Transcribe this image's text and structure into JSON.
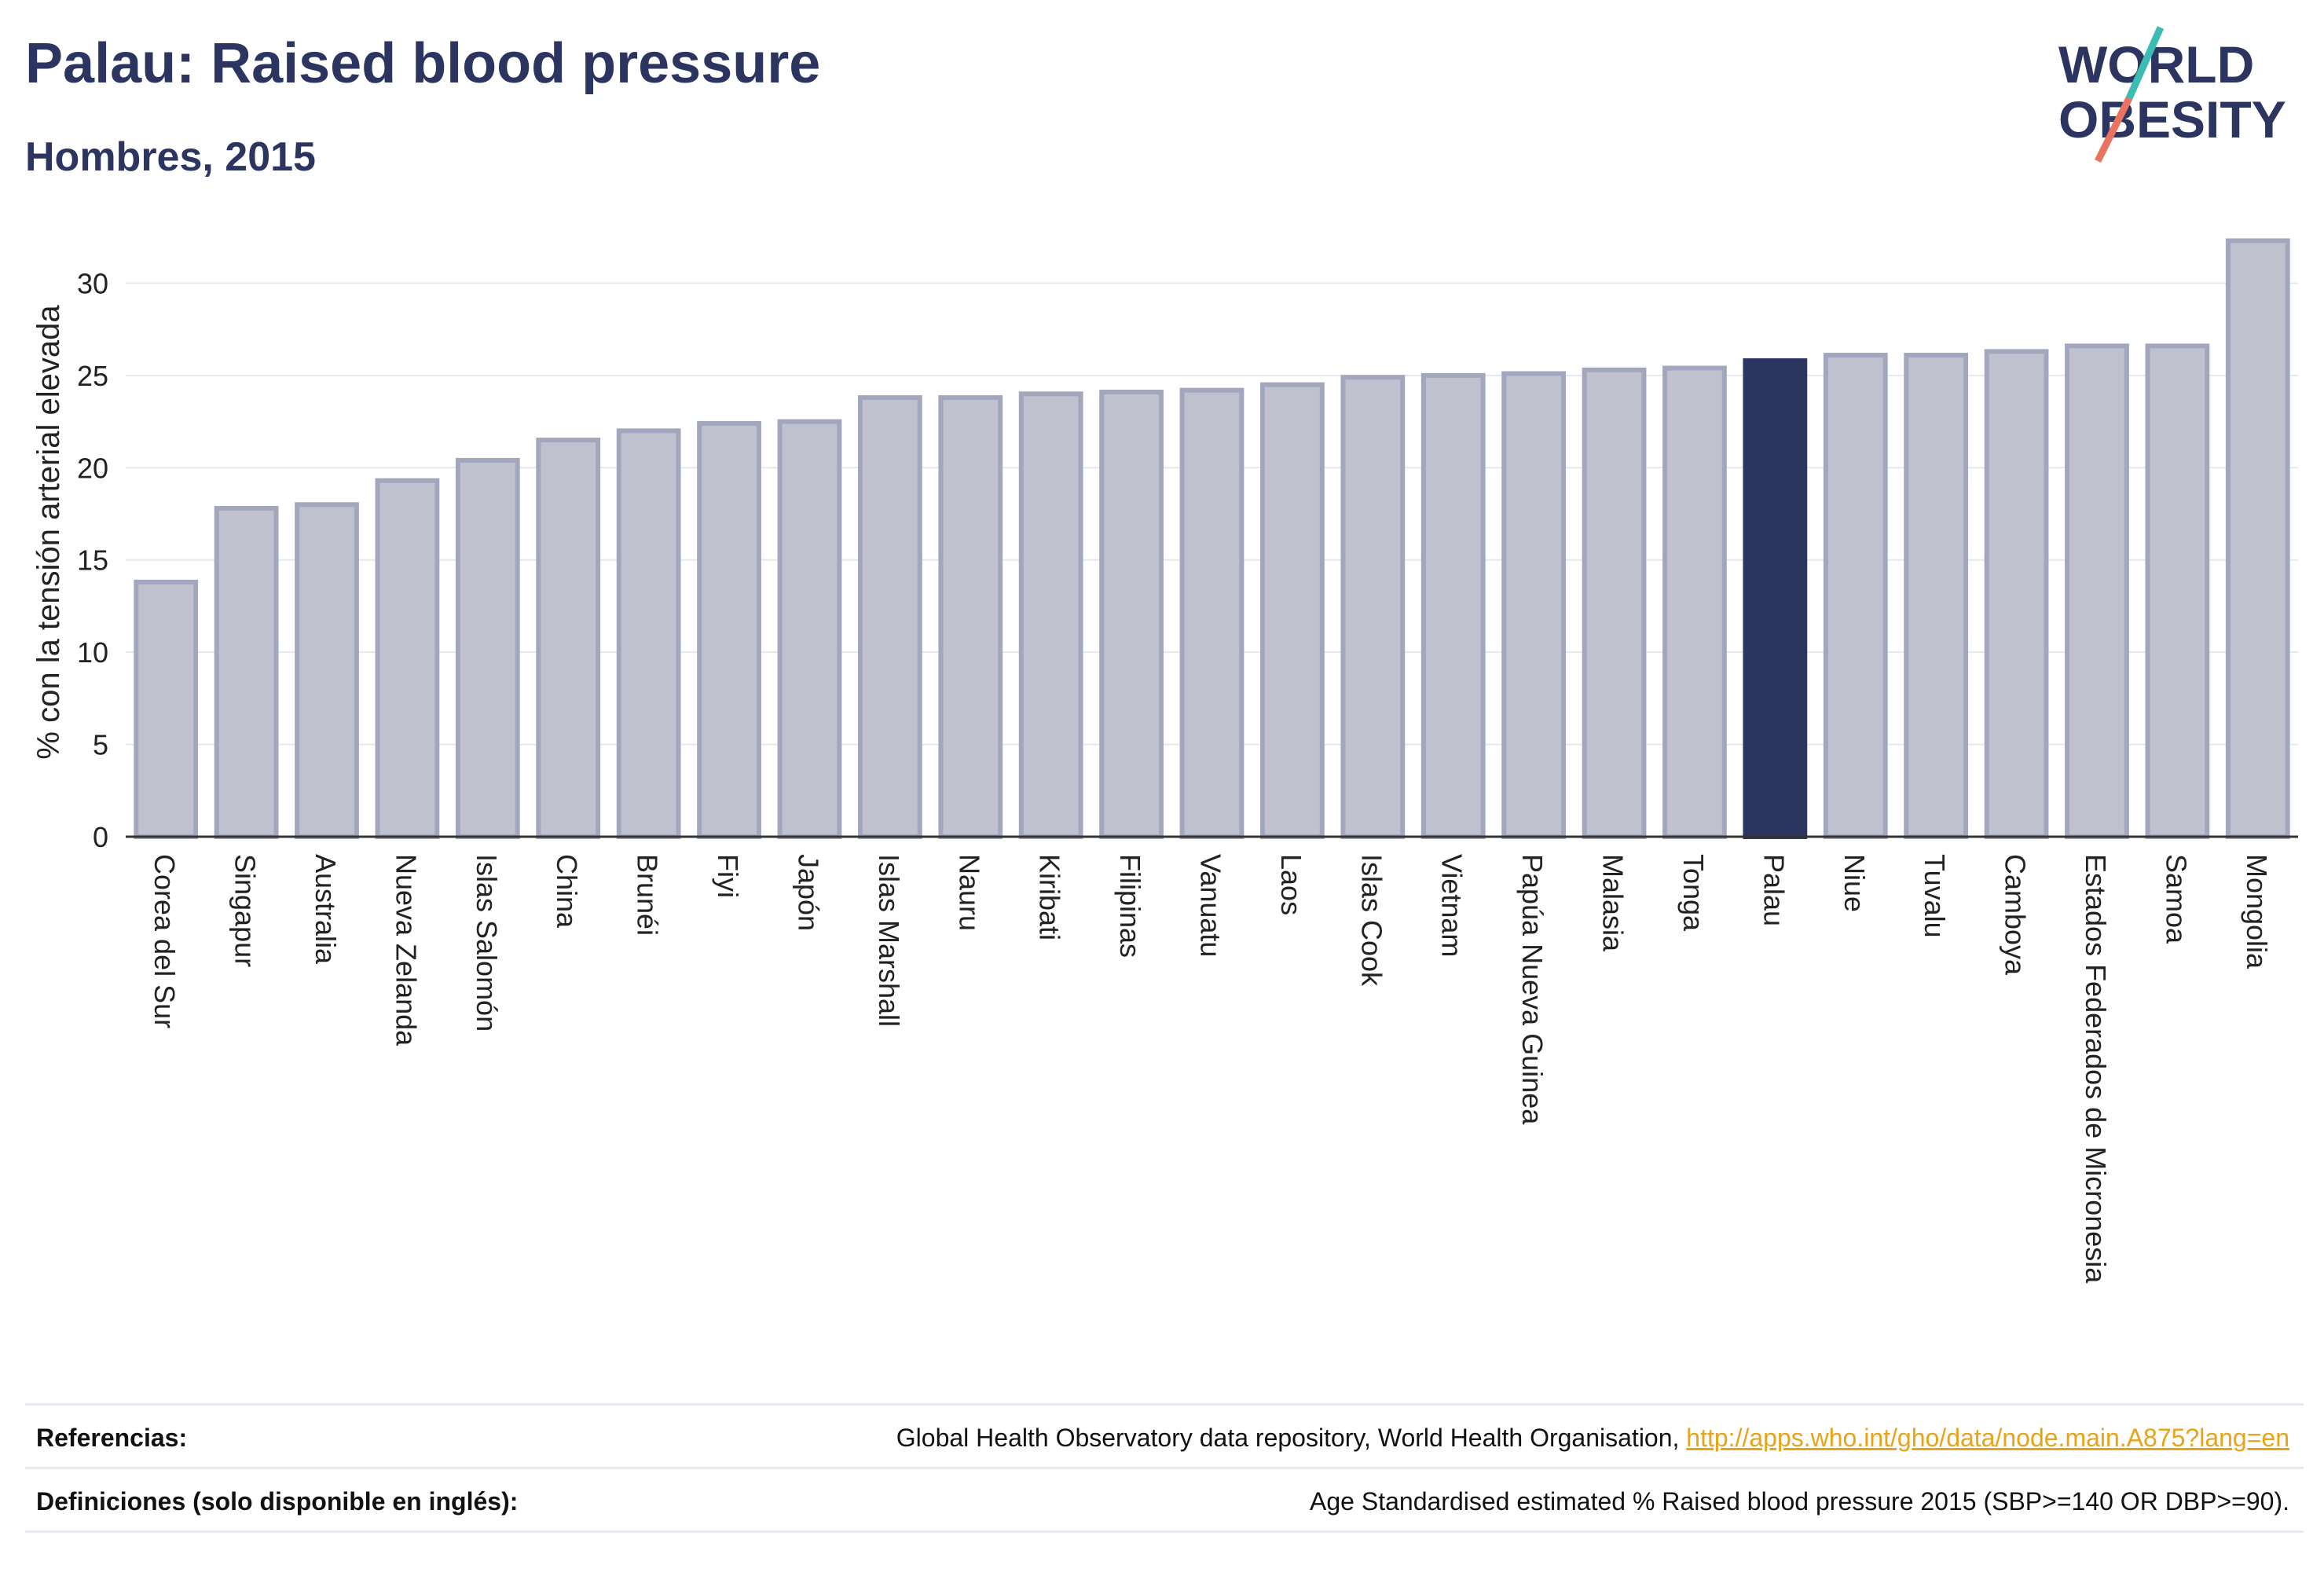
{
  "header": {
    "title": "Palau: Raised blood pressure",
    "subtitle": "Hombres, 2015"
  },
  "logo": {
    "line1": "WORLD",
    "line2": "OBESITY"
  },
  "colors": {
    "bar": "#bfc2ce",
    "bar_edge": "#a2a7bd",
    "highlight": "#2b3560",
    "title": "#2b3560",
    "link": "#e8a317",
    "logo_teal": "#3cbdb4",
    "logo_red": "#e8735f"
  },
  "chart_data": {
    "type": "bar",
    "ylabel": "% con la tensión arterial elevada",
    "xlabel": "",
    "ylim": [
      0,
      33
    ],
    "yticks": [
      0,
      5,
      10,
      15,
      20,
      25,
      30
    ],
    "grid": true,
    "highlight": "Palau",
    "categories": [
      "Corea del Sur",
      "Singapur",
      "Australia",
      "Nueva Zelanda",
      "Islas Salomón",
      "China",
      "Brunéi",
      "Fiyi",
      "Japón",
      "Islas Marshall",
      "Nauru",
      "Kiribati",
      "Filipinas",
      "Vanuatu",
      "Laos",
      "Islas Cook",
      "Vietnam",
      "Papúa Nueva Guinea",
      "Malasia",
      "Tonga",
      "Palau",
      "Niue",
      "Tuvalu",
      "Camboya",
      "Estados Federados de Micronesia",
      "Samoa",
      "Mongolia"
    ],
    "values": [
      13.8,
      17.8,
      18.0,
      19.3,
      20.4,
      21.5,
      22.0,
      22.4,
      22.5,
      23.8,
      23.8,
      24.0,
      24.1,
      24.2,
      24.5,
      24.9,
      25.0,
      25.1,
      25.3,
      25.4,
      25.8,
      26.1,
      26.1,
      26.3,
      26.6,
      26.6,
      32.3
    ]
  },
  "footer": {
    "references_label": "Referencias:",
    "references_text": "Global Health Observatory data repository, World Health Organisation, ",
    "references_link": "http://apps.who.int/gho/data/node.main.A875?lang=en",
    "definitions_label": "Definiciones (solo disponible en inglés):",
    "definitions_text": "Age Standardised estimated % Raised blood pressure 2015 (SBP>=140 OR DBP>=90)."
  }
}
